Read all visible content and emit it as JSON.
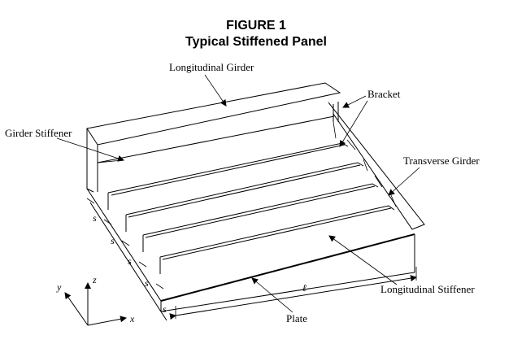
{
  "figure": {
    "title_line1": "FIGURE 1",
    "title_line2": "Typical Stiffened Panel"
  },
  "labels": {
    "longitudinal_girder": "Longitudinal Girder",
    "bracket": "Bracket",
    "girder_stiffener": "Girder Stiffener",
    "transverse_girder": "Transverse Girder",
    "longitudinal_stiffener": "Longitudinal Stiffener",
    "plate": "Plate",
    "length": "ℓ",
    "spacing": "s"
  },
  "axes": {
    "x": "x",
    "y": "y",
    "z": "z"
  }
}
